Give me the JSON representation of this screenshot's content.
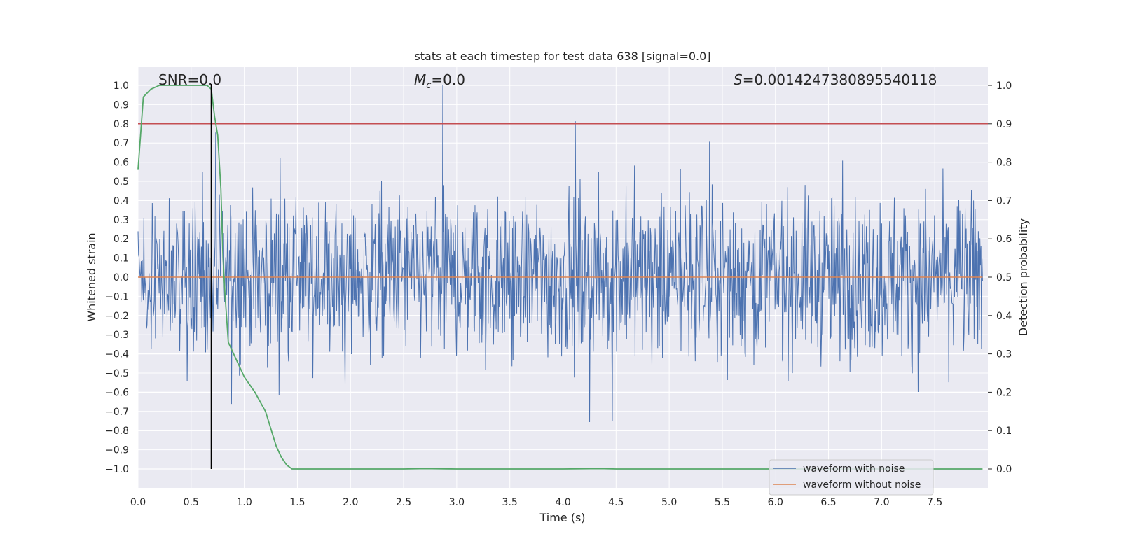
{
  "chart_data": {
    "type": "line",
    "title": "stats at each timestep for test data 638 [signal=0.0]",
    "xlabel": "Time (s)",
    "ylabel": "Whitened strain",
    "y2label": "Detection probability",
    "xlim": [
      0.0,
      8.0
    ],
    "ylim": [
      -1.05,
      1.1
    ],
    "y2lim": [
      -0.05,
      1.0
    ],
    "xticks": [
      "0.0",
      "0.5",
      "1.0",
      "1.5",
      "2.0",
      "2.5",
      "3.0",
      "3.5",
      "4.0",
      "4.5",
      "5.0",
      "5.5",
      "6.0",
      "6.5",
      "7.0",
      "7.5"
    ],
    "yticks": [
      "1.0",
      "0.9",
      "0.8",
      "0.7",
      "0.6",
      "0.5",
      "0.4",
      "0.3",
      "0.2",
      "0.1",
      "0.0",
      "-0.1",
      "-0.2",
      "-0.3",
      "-0.4",
      "-0.5",
      "-0.6",
      "-0.7",
      "-0.8",
      "-0.9",
      "-1.0"
    ],
    "y2ticks": [
      "1.0",
      "0.9",
      "0.8",
      "0.7",
      "0.6",
      "0.5",
      "0.4",
      "0.3",
      "0.2",
      "0.1",
      "0.0"
    ],
    "annotations": {
      "snr": "SNR=0.0",
      "mc_symbol": "M",
      "mc_sub": "c",
      "mc_value": "=0.0",
      "s_symbol": "S",
      "s_value": "=0.0014247380895540118"
    },
    "legend": {
      "location": "lower right",
      "entries": [
        "waveform with noise",
        "waveform without noise"
      ]
    },
    "threshold_line": {
      "axis": "y2",
      "value": 0.9,
      "color": "#c44e52"
    },
    "vertical_line": {
      "x": 0.69,
      "color": "#000000"
    },
    "series": [
      {
        "name": "waveform with noise",
        "axis": "y",
        "color": "#4c72b0",
        "description_stats": {
          "n_points": 1600,
          "x_start": 0.0,
          "x_end": 7.95,
          "envelope_min": -1.0,
          "envelope_max": 1.0
        }
      },
      {
        "name": "waveform without noise",
        "axis": "y",
        "color": "#dd8452",
        "x": [
          0.0,
          7.95
        ],
        "y": [
          0.0,
          0.0
        ]
      },
      {
        "name": "detection probability",
        "axis": "y2",
        "color": "#55a868",
        "x": [
          0.0,
          0.05,
          0.12,
          0.2,
          0.3,
          0.5,
          0.65,
          0.69,
          0.72,
          0.75,
          0.78,
          0.8,
          0.82,
          0.85,
          0.9,
          0.95,
          1.0,
          1.1,
          1.2,
          1.3,
          1.35,
          1.4,
          1.45,
          1.5,
          2.0,
          2.5,
          2.7,
          3.0,
          3.5,
          4.0,
          4.35,
          4.5,
          5.0,
          5.5,
          6.0,
          6.5,
          7.0,
          7.5,
          7.95
        ],
        "y": [
          0.78,
          0.97,
          0.99,
          1.0,
          1.0,
          1.0,
          1.0,
          0.99,
          0.92,
          0.87,
          0.73,
          0.55,
          0.45,
          0.33,
          0.3,
          0.27,
          0.24,
          0.2,
          0.15,
          0.06,
          0.03,
          0.01,
          0.0,
          0.0,
          0.0,
          0.0,
          0.001,
          0.0,
          0.0,
          0.0,
          0.001,
          0.0,
          0.0,
          0.0,
          0.0,
          0.0,
          0.0,
          0.0,
          0.0
        ]
      }
    ]
  }
}
